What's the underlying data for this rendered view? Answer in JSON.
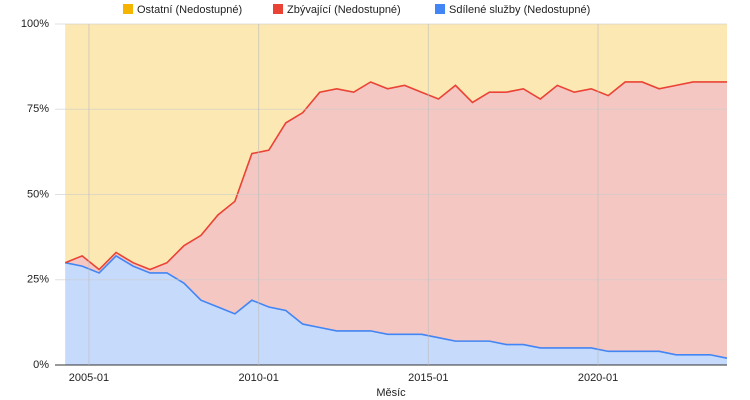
{
  "chart_data": {
    "type": "stacked-area",
    "x_label": "Měsíc",
    "x": [
      2004.3,
      2004.8,
      2005.3,
      2005.8,
      2006.3,
      2006.8,
      2007.3,
      2007.8,
      2008.3,
      2008.8,
      2009.3,
      2009.8,
      2010.3,
      2010.8,
      2011.3,
      2011.8,
      2012.3,
      2012.8,
      2013.3,
      2013.8,
      2014.3,
      2014.8,
      2015.3,
      2015.8,
      2016.3,
      2016.8,
      2017.3,
      2017.8,
      2018.3,
      2018.8,
      2019.3,
      2019.8,
      2020.3,
      2020.8,
      2021.3,
      2021.8,
      2022.3,
      2022.8,
      2023.3,
      2023.8
    ],
    "series": [
      {
        "name": "Sdílené služby (Nedostupné)",
        "color": "#4285f4",
        "fill": "#c6dafc",
        "values": [
          30,
          29,
          27,
          32,
          29,
          27,
          27,
          24,
          19,
          17,
          15,
          19,
          17,
          16,
          12,
          11,
          10,
          10,
          10,
          9,
          9,
          9,
          8,
          7,
          7,
          7,
          6,
          6,
          5,
          5,
          5,
          5,
          4,
          4,
          4,
          4,
          3,
          3,
          3,
          2
        ]
      },
      {
        "name": "Zbývající (Nedostupné)",
        "color": "#ea4335",
        "fill": "#f4c7c3",
        "values": [
          0,
          3,
          1,
          1,
          1,
          1,
          3,
          11,
          19,
          27,
          33,
          43,
          46,
          55,
          62,
          69,
          71,
          70,
          73,
          72,
          73,
          71,
          70,
          75,
          70,
          73,
          74,
          75,
          73,
          77,
          75,
          76,
          75,
          79,
          79,
          77,
          79,
          80,
          80,
          81
        ]
      },
      {
        "name": "Ostatní (Nedostupné)",
        "color": "#f4b400",
        "fill": "#fce8b2",
        "values": [
          70,
          68,
          72,
          67,
          70,
          72,
          70,
          65,
          62,
          56,
          52,
          38,
          37,
          29,
          26,
          20,
          19,
          20,
          17,
          19,
          18,
          20,
          22,
          18,
          23,
          20,
          20,
          19,
          22,
          18,
          20,
          19,
          21,
          17,
          17,
          19,
          18,
          17,
          17,
          17
        ]
      }
    ],
    "xlim": [
      2004.0,
      2023.8
    ],
    "xticks": [
      {
        "value": 2005,
        "label": "2005-01"
      },
      {
        "value": 2010,
        "label": "2010-01"
      },
      {
        "value": 2015,
        "label": "2015-01"
      },
      {
        "value": 2020,
        "label": "2020-01"
      }
    ],
    "ylim": [
      0,
      100
    ],
    "yticks": [
      {
        "value": 0,
        "label": "0%"
      },
      {
        "value": 25,
        "label": "25%"
      },
      {
        "value": 50,
        "label": "50%"
      },
      {
        "value": 75,
        "label": "75%"
      },
      {
        "value": 100,
        "label": "100%"
      }
    ],
    "grid": true,
    "legend": "top"
  }
}
